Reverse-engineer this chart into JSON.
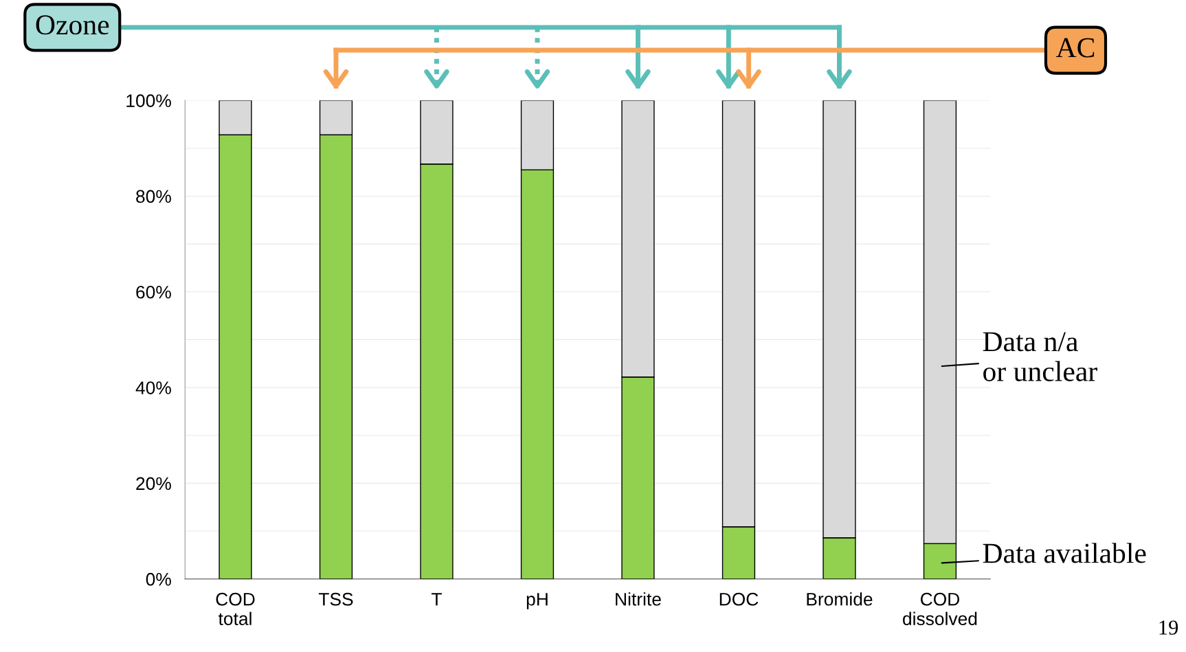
{
  "chart_data": {
    "type": "bar",
    "stacked": true,
    "categories": [
      "COD\ntotal",
      "TSS",
      "T",
      "pH",
      "Nitrite",
      "DOC",
      "Bromide",
      "COD\ndissolved"
    ],
    "series": [
      {
        "name": "Data available",
        "color": "#92d050",
        "values": [
          92.8,
          92.8,
          86.7,
          85.5,
          42.2,
          10.9,
          8.6,
          7.4
        ]
      },
      {
        "name": "Data n/a\nor unclear",
        "color": "#d9d9d9",
        "values": [
          7.2,
          7.2,
          13.3,
          14.5,
          57.8,
          89.1,
          91.4,
          92.6
        ]
      }
    ],
    "ylim": [
      0,
      100
    ],
    "yticks": [
      {
        "value": 0,
        "label": "0%"
      },
      {
        "value": 10,
        "label": null
      },
      {
        "value": 20,
        "label": "20%"
      },
      {
        "value": 30,
        "label": null
      },
      {
        "value": 40,
        "label": "40%"
      },
      {
        "value": 50,
        "label": null
      },
      {
        "value": 60,
        "label": "60%"
      },
      {
        "value": 70,
        "label": null
      },
      {
        "value": 80,
        "label": "80%"
      },
      {
        "value": 90,
        "label": null
      },
      {
        "value": 100,
        "label": "100%"
      }
    ],
    "grid": "y",
    "legend": "right",
    "annotations": [
      "Ozone",
      "AC",
      "19"
    ]
  }
}
